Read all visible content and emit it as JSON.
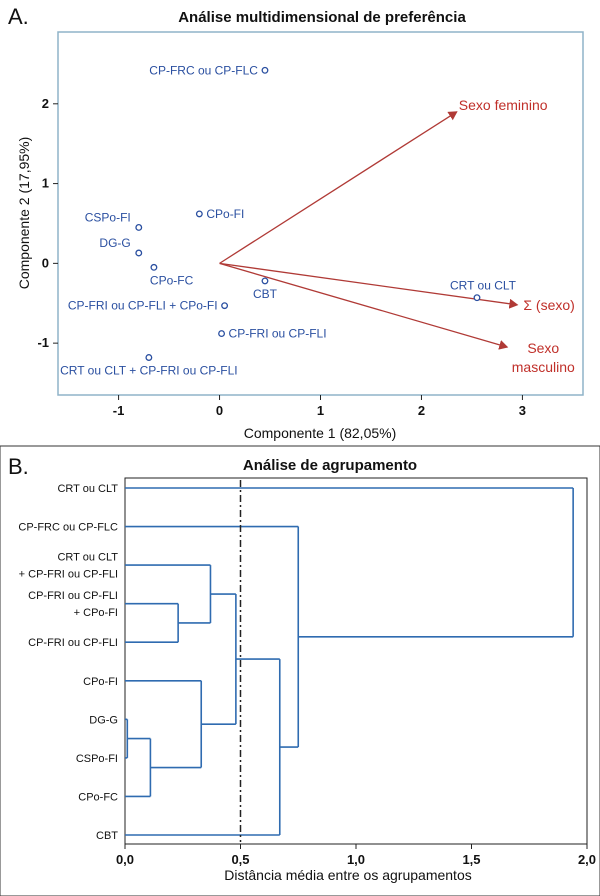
{
  "panel_a_label": "A.",
  "panel_b_label": "B.",
  "chart_data": [
    {
      "type": "scatter",
      "title": "Análise multidimensional de preferência",
      "xlabel": "Componente 1 (82,05%)",
      "ylabel": "Componente 2 (17,95%)",
      "xlim": [
        -1.6,
        3.6
      ],
      "ylim": [
        -1.65,
        2.9
      ],
      "xticks": [
        "-1",
        "0",
        "1",
        "2",
        "3"
      ],
      "xtick_values": [
        -1,
        0,
        1,
        2,
        3
      ],
      "yticks": [
        "2",
        "1",
        "0",
        "-1"
      ],
      "ytick_values": [
        2,
        1,
        0,
        -1
      ],
      "points": [
        {
          "label": "CP-FRC ou CP-FLC",
          "x": 0.45,
          "y": 2.42,
          "label_side": "left"
        },
        {
          "label": "CPo-FI",
          "x": -0.2,
          "y": 0.62,
          "label_side": "right"
        },
        {
          "label": "CSPo-FI",
          "x": -0.8,
          "y": 0.45,
          "label_side": "left-above"
        },
        {
          "label": "DG-G",
          "x": -0.8,
          "y": 0.13,
          "label_side": "left-above"
        },
        {
          "label": "CPo-FC",
          "x": -0.65,
          "y": -0.05,
          "label_side": "below-right"
        },
        {
          "label": "CBT",
          "x": 0.45,
          "y": -0.22,
          "label_side": "below"
        },
        {
          "label": "CP-FRI ou CP-FLI + CPo-FI",
          "x": 0.05,
          "y": -0.53,
          "label_side": "left"
        },
        {
          "label": "CP-FRI ou CP-FLI",
          "x": 0.02,
          "y": -0.88,
          "label_side": "right"
        },
        {
          "label": "CRT ou CLT + CP-FRI ou CP-FLI",
          "x": -0.7,
          "y": -1.18,
          "label_side": "below"
        },
        {
          "label": "CRT ou CLT",
          "x": 2.55,
          "y": -0.43,
          "label_side": "above"
        }
      ],
      "vectors": [
        {
          "label": "Sexo feminino",
          "x": 2.35,
          "y": 1.9
        },
        {
          "label": "Σ (sexo)",
          "x": 2.95,
          "y": -0.52
        },
        {
          "label": "Sexo",
          "label2": "masculino",
          "x": 2.85,
          "y": -1.05
        }
      ],
      "point_color": "#2a4fa0",
      "vector_color": "#b03a36"
    },
    {
      "type": "dendrogram",
      "title": "Análise de agrupamento",
      "xlabel": "Distância média entre os agrupamentos",
      "xlim": [
        0,
        2.0
      ],
      "xticks": [
        "0,0",
        "0,5",
        "1,0",
        "1,5",
        "2,0"
      ],
      "xtick_values": [
        0,
        0.5,
        1.0,
        1.5,
        2.0
      ],
      "cutoff": 0.5,
      "leaves": [
        {
          "id": "L0",
          "label": [
            "CRT ou CLT"
          ]
        },
        {
          "id": "L1",
          "label": [
            "CP-FRC ou CP-FLC"
          ]
        },
        {
          "id": "L2",
          "label": [
            "CRT ou CLT",
            "+ CP-FRI ou CP-FLI"
          ]
        },
        {
          "id": "L3",
          "label": [
            "CP-FRI ou CP-FLI",
            "+ CPo-FI"
          ]
        },
        {
          "id": "L4",
          "label": [
            "CP-FRI ou CP-FLI"
          ]
        },
        {
          "id": "L5",
          "label": [
            "CPo-FI"
          ]
        },
        {
          "id": "L6",
          "label": [
            "DG-G"
          ]
        },
        {
          "id": "L7",
          "label": [
            "CSPo-FI"
          ]
        },
        {
          "id": "L8",
          "label": [
            "CPo-FC"
          ]
        },
        {
          "id": "L9",
          "label": [
            "CBT"
          ]
        }
      ],
      "merges": [
        {
          "id": "M1",
          "a": "L6",
          "b": "L7",
          "height": 0.01
        },
        {
          "id": "M2",
          "a": "M1",
          "b": "L8",
          "height": 0.11
        },
        {
          "id": "M3",
          "a": "L3",
          "b": "L4",
          "height": 0.23
        },
        {
          "id": "M4",
          "a": "L5",
          "b": "M2",
          "height": 0.33
        },
        {
          "id": "M5",
          "a": "L2",
          "b": "M3",
          "height": 0.37
        },
        {
          "id": "M6",
          "a": "M5",
          "b": "M4",
          "height": 0.48
        },
        {
          "id": "M7",
          "a": "M6",
          "b": "L9",
          "height": 0.67
        },
        {
          "id": "M8",
          "a": "L1",
          "b": "M7",
          "height": 0.75
        },
        {
          "id": "M9",
          "a": "L0",
          "b": "M8",
          "height": 1.94
        }
      ],
      "line_color": "#2f6bb0"
    }
  ]
}
